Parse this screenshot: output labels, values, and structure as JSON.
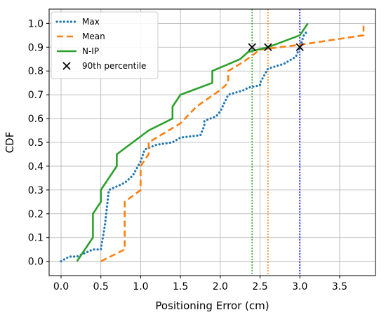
{
  "chart_data": {
    "type": "line",
    "title": "",
    "xlabel": "Positioning Error (cm)",
    "ylabel": "CDF",
    "xlim": [
      -0.15,
      3.95
    ],
    "ylim": [
      -0.06,
      1.06
    ],
    "xticks": [
      "0.0",
      "0.5",
      "1.0",
      "1.5",
      "2.0",
      "2.5",
      "3.0",
      "3.5"
    ],
    "yticks": [
      "0.0",
      "0.1",
      "0.2",
      "0.3",
      "0.4",
      "0.5",
      "0.6",
      "0.7",
      "0.8",
      "0.9",
      "1.0"
    ],
    "grid": true,
    "legend_position": "top-left",
    "series": [
      {
        "name": "Max",
        "style": "dotted",
        "color": "#1f77b4",
        "points": [
          [
            0.0,
            0.0
          ],
          [
            0.1,
            0.02
          ],
          [
            0.2,
            0.02
          ],
          [
            0.4,
            0.05
          ],
          [
            0.5,
            0.05
          ],
          [
            0.55,
            0.15
          ],
          [
            0.6,
            0.3
          ],
          [
            0.8,
            0.33
          ],
          [
            0.9,
            0.36
          ],
          [
            1.0,
            0.42
          ],
          [
            1.05,
            0.47
          ],
          [
            1.2,
            0.49
          ],
          [
            1.4,
            0.5
          ],
          [
            1.5,
            0.52
          ],
          [
            1.75,
            0.53
          ],
          [
            1.8,
            0.57
          ],
          [
            1.8,
            0.59
          ],
          [
            1.95,
            0.61
          ],
          [
            2.0,
            0.63
          ],
          [
            2.1,
            0.7
          ],
          [
            2.3,
            0.72
          ],
          [
            2.35,
            0.73
          ],
          [
            2.5,
            0.74
          ],
          [
            2.5,
            0.75
          ],
          [
            2.6,
            0.81
          ],
          [
            2.8,
            0.83
          ],
          [
            2.95,
            0.86
          ],
          [
            3.0,
            0.9
          ],
          [
            3.05,
            0.95
          ],
          [
            3.1,
            0.97
          ]
        ]
      },
      {
        "name": "Mean",
        "style": "dashed",
        "color": "#ff7f0e",
        "points": [
          [
            0.5,
            0.0
          ],
          [
            0.8,
            0.05
          ],
          [
            0.8,
            0.25
          ],
          [
            1.0,
            0.3
          ],
          [
            1.0,
            0.4
          ],
          [
            1.1,
            0.45
          ],
          [
            1.1,
            0.5
          ],
          [
            1.35,
            0.55
          ],
          [
            1.5,
            0.58
          ],
          [
            1.7,
            0.65
          ],
          [
            2.0,
            0.72
          ],
          [
            2.1,
            0.75
          ],
          [
            2.1,
            0.8
          ],
          [
            2.3,
            0.84
          ],
          [
            2.5,
            0.89
          ],
          [
            2.75,
            0.9
          ],
          [
            3.0,
            0.91
          ],
          [
            3.8,
            0.95
          ],
          [
            3.8,
            0.99
          ]
        ]
      },
      {
        "name": "N-IP",
        "style": "solid",
        "color": "#2ca02c",
        "points": [
          [
            0.2,
            0.0
          ],
          [
            0.4,
            0.1
          ],
          [
            0.4,
            0.2
          ],
          [
            0.5,
            0.25
          ],
          [
            0.5,
            0.3
          ],
          [
            0.7,
            0.4
          ],
          [
            0.7,
            0.45
          ],
          [
            1.1,
            0.55
          ],
          [
            1.4,
            0.6
          ],
          [
            1.4,
            0.65
          ],
          [
            1.5,
            0.7
          ],
          [
            1.9,
            0.75
          ],
          [
            1.9,
            0.8
          ],
          [
            2.25,
            0.85
          ],
          [
            2.35,
            0.88
          ],
          [
            2.6,
            0.9
          ],
          [
            3.0,
            0.95
          ],
          [
            3.1,
            1.0
          ]
        ]
      }
    ],
    "percentile_markers": {
      "name": "90th percentile",
      "marker": "x",
      "points": [
        [
          2.4,
          0.9
        ],
        [
          2.6,
          0.9
        ],
        [
          3.0,
          0.9
        ]
      ]
    },
    "vertical_lines": [
      {
        "x": 2.4,
        "color": "#2ca02c",
        "style": "dotted"
      },
      {
        "x": 2.6,
        "color": "#ff7f0e",
        "style": "dotted"
      },
      {
        "x": 3.0,
        "color": "#0000ee",
        "style": "dotted"
      }
    ]
  }
}
